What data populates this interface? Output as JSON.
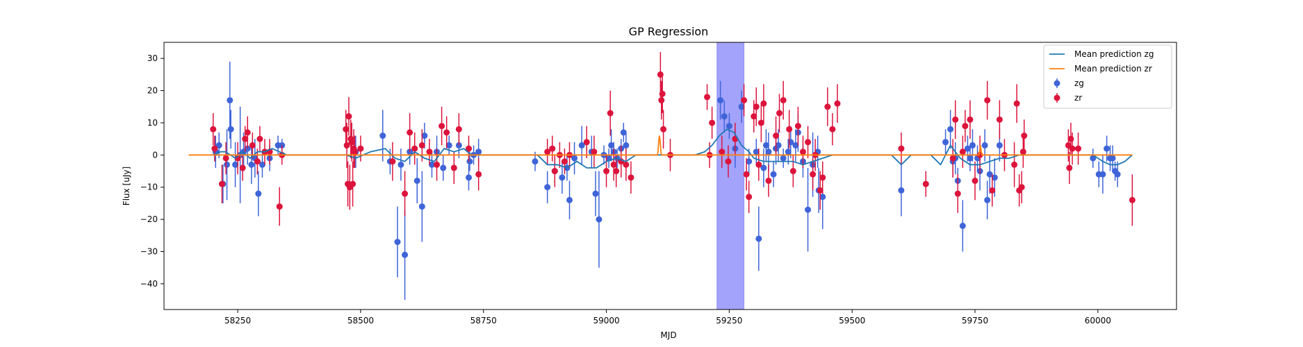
{
  "chart_data": {
    "type": "scatter",
    "title": "GP Regression",
    "xlabel": "MJD",
    "ylabel": "Flux [uJy]",
    "xlim": [
      58100,
      60160
    ],
    "ylim": [
      -48,
      35
    ],
    "x_ticks": [
      58250,
      58500,
      58750,
      59000,
      59250,
      59500,
      59750,
      60000
    ],
    "y_ticks": [
      -40,
      -30,
      -20,
      -10,
      0,
      10,
      20,
      30
    ],
    "shaded_region": {
      "x_start": 59225,
      "x_end": 59280,
      "color": "#a3a3fb"
    },
    "legend": {
      "placement": "top-right",
      "entries": [
        "Mean prediction zg",
        "Mean prediction zr",
        "zg",
        "zr"
      ]
    },
    "colors": {
      "zg_line": "#1f77b4",
      "zr_line": "#ff7f0e",
      "zg_points": "#3e64d8",
      "zr_points": "#dc143c",
      "shade": "#a3a3fb"
    },
    "series": [
      {
        "name": "Mean prediction zg",
        "kind": "line",
        "x": [
          58200,
          58215,
          58225,
          58235,
          58245,
          58260,
          58275,
          58290,
          58305,
          58320,
          58335,
          58350,
          58470,
          58490,
          58520,
          58550,
          58570,
          58590,
          58610,
          58630,
          58650,
          58670,
          58690,
          58710,
          58725,
          58740,
          58760,
          58860,
          58880,
          58900,
          58920,
          58940,
          58960,
          58980,
          59000,
          59020,
          59040,
          59060,
          59080,
          59100,
          59180,
          59200,
          59215,
          59230,
          59245,
          59260,
          59275,
          59290,
          59300,
          59320,
          59340,
          59360,
          59380,
          59400,
          59420,
          59440,
          59460,
          59480,
          59580,
          59600,
          59620,
          59660,
          59680,
          59700,
          59720,
          59740,
          59760,
          59780,
          59800,
          59820,
          59840,
          59860,
          59990,
          60010,
          60025,
          60040,
          60055,
          60070
        ],
        "y": [
          0,
          1,
          1,
          0,
          -1,
          1,
          -1,
          1,
          1,
          2,
          1,
          0,
          0,
          -1,
          1,
          2,
          -1,
          -2,
          1,
          -1,
          -2,
          2,
          1,
          2,
          0,
          0,
          0,
          0,
          -3,
          -3,
          -4,
          -2,
          -4,
          -4,
          -2,
          -1,
          -2,
          0,
          0,
          0,
          0,
          1,
          3,
          6,
          8,
          7,
          3,
          1,
          -1,
          -2,
          -2,
          -2,
          -2,
          -3,
          -2,
          -1,
          0,
          0,
          0,
          -3,
          0,
          0,
          -3,
          3,
          -1,
          -3,
          -3,
          -2,
          -1,
          -1,
          0,
          0,
          0,
          -2,
          -3,
          -3,
          -2,
          0
        ]
      },
      {
        "name": "Mean prediction zr",
        "kind": "line",
        "x": [
          58150,
          58300,
          58450,
          58600,
          58750,
          58900,
          59050,
          59104,
          59105,
          59106,
          59107,
          59108,
          59109,
          59110,
          59111,
          59112,
          59113,
          59114,
          59115,
          59116,
          59200,
          59250,
          59350,
          59500,
          59650,
          59758,
          59759,
          59760,
          59761,
          59762,
          59763,
          59764,
          59765,
          59766,
          59800,
          59950,
          60070
        ],
        "y": [
          0,
          0,
          0,
          0,
          0,
          0,
          0,
          0,
          1,
          3,
          5,
          6,
          5,
          3,
          1,
          0,
          0,
          0,
          0,
          0,
          0,
          0,
          0,
          0,
          0,
          0,
          1,
          2,
          3,
          2,
          1,
          0,
          0,
          0,
          0,
          0,
          0
        ]
      },
      {
        "name": "zg",
        "kind": "errorbar",
        "x": [
          58205,
          58212,
          58220,
          58228,
          58234,
          58236,
          58245,
          58255,
          58262,
          58270,
          58278,
          58285,
          58292,
          58300,
          58315,
          58332,
          58340,
          58490,
          58545,
          58560,
          58575,
          58582,
          58590,
          58600,
          58615,
          58625,
          58630,
          58645,
          58655,
          58668,
          58680,
          58700,
          58720,
          58722,
          58730,
          58740,
          58855,
          58880,
          58895,
          58910,
          58920,
          58925,
          58935,
          58950,
          58970,
          58978,
          58985,
          58995,
          59005,
          59010,
          59015,
          59022,
          59030,
          59035,
          59040,
          59232,
          59240,
          59250,
          59262,
          59275,
          59290,
          59305,
          59310,
          59320,
          59325,
          59330,
          59340,
          59345,
          59350,
          59360,
          59370,
          59375,
          59385,
          59390,
          59400,
          59410,
          59420,
          59430,
          59432,
          59440,
          59600,
          59690,
          59700,
          59705,
          59710,
          59715,
          59725,
          59735,
          59740,
          59745,
          59755,
          59760,
          59770,
          59775,
          59780,
          59790,
          59800,
          59990,
          60002,
          60010,
          60018,
          60025,
          60030,
          60035,
          60040
        ],
        "y": [
          1,
          3,
          -9,
          -3,
          17,
          8,
          -3,
          0,
          1,
          2,
          -3,
          -1,
          -12,
          -3,
          -1,
          3,
          3,
          1,
          6,
          -2,
          -27,
          -3,
          -31,
          1,
          -8,
          -16,
          6,
          -3,
          1,
          -4,
          3,
          3,
          -7,
          -2,
          0,
          1,
          -2,
          -10,
          -5,
          -7,
          -4,
          -14,
          -1,
          3,
          1,
          -12,
          -20,
          0,
          -1,
          3,
          1,
          -1,
          2,
          7,
          3,
          17,
          12,
          9,
          2,
          15,
          -2,
          1,
          -26,
          -4,
          3,
          1,
          -6,
          2,
          3,
          -1,
          1,
          4,
          3,
          7,
          -2,
          -17,
          -3,
          1,
          -11,
          -13,
          -11,
          4,
          8,
          -2,
          -1,
          -8,
          -22,
          2,
          -1,
          3,
          -1,
          -5,
          3,
          -14,
          -6,
          -7,
          3,
          -1,
          -6,
          -6,
          2,
          -1,
          -1,
          -5,
          -6
        ],
        "err": [
          5,
          4,
          6,
          11,
          12,
          6,
          7,
          15,
          6,
          5,
          6,
          6,
          7,
          4,
          4,
          3,
          2,
          5,
          8,
          4,
          11,
          5,
          14,
          4,
          7,
          11,
          4,
          4,
          5,
          4,
          3,
          4,
          4,
          3,
          3,
          4,
          3,
          5,
          4,
          5,
          4,
          6,
          5,
          6,
          5,
          7,
          15,
          3,
          3,
          5,
          3,
          3,
          3,
          3,
          4,
          6,
          5,
          4,
          6,
          5,
          4,
          4,
          10,
          6,
          5,
          6,
          4,
          5,
          5,
          3,
          4,
          5,
          5,
          6,
          5,
          13,
          10,
          5,
          7,
          10,
          8,
          4,
          6,
          5,
          5,
          4,
          8,
          4,
          4,
          5,
          4,
          6,
          5,
          6,
          6,
          6,
          5,
          3,
          4,
          6,
          4,
          4,
          4,
          3,
          4
        ]
      },
      {
        "name": "zr",
        "kind": "errorbar",
        "x": [
          58200,
          58203,
          58218,
          58226,
          58250,
          58260,
          58265,
          58270,
          58280,
          58290,
          58295,
          58305,
          58315,
          58335,
          58340,
          58470,
          58472,
          58474,
          58476,
          58478,
          58480,
          58482,
          58484,
          58486,
          58488,
          58500,
          58565,
          58590,
          58600,
          58610,
          58625,
          58640,
          58655,
          58665,
          58675,
          58690,
          58700,
          58720,
          58740,
          58880,
          58890,
          58895,
          58905,
          58915,
          58925,
          58960,
          58975,
          59000,
          59008,
          59015,
          59020,
          59030,
          59040,
          59050,
          59110,
          59112,
          59114,
          59116,
          59130,
          59205,
          59210,
          59215,
          59235,
          59248,
          59262,
          59280,
          59285,
          59290,
          59300,
          59305,
          59310,
          59315,
          59320,
          59330,
          59345,
          59352,
          59360,
          59372,
          59380,
          59390,
          59400,
          59410,
          59420,
          59425,
          59435,
          59440,
          59450,
          59460,
          59470,
          59600,
          59650,
          59705,
          59710,
          59715,
          59725,
          59730,
          59740,
          59750,
          59760,
          59775,
          59785,
          59800,
          59810,
          59830,
          59835,
          59840,
          59845,
          59848,
          59850,
          59940,
          59942,
          59945,
          59948,
          59960,
          60070
        ],
        "y": [
          8,
          2,
          -9,
          -1,
          -1,
          -4,
          5,
          7,
          3,
          -2,
          5,
          1,
          1,
          -16,
          0,
          8,
          3,
          -9,
          12,
          -10,
          5,
          4,
          -9,
          2,
          1,
          2,
          -2,
          -12,
          7,
          2,
          3,
          1,
          -3,
          9,
          7,
          -4,
          8,
          2,
          -6,
          1,
          2,
          -5,
          0,
          -2,
          0,
          4,
          1,
          -5,
          13,
          -3,
          -5,
          -2,
          -3,
          -7,
          25,
          17,
          19,
          8,
          0,
          18,
          0,
          10,
          1,
          -2,
          5,
          17,
          -6,
          -13,
          12,
          15,
          -3,
          10,
          16,
          -8,
          6,
          13,
          17,
          8,
          -5,
          9,
          1,
          4,
          -6,
          0,
          -11,
          -7,
          15,
          8,
          16,
          2,
          -9,
          -1,
          11,
          -12,
          1,
          9,
          11,
          -8,
          0,
          17,
          -11,
          11,
          0,
          -3,
          16,
          -11,
          -10,
          1,
          6,
          3,
          -4,
          5,
          2,
          2,
          -14
        ],
        "err": [
          5,
          4,
          6,
          5,
          5,
          4,
          4,
          5,
          4,
          4,
          4,
          4,
          4,
          6,
          3,
          6,
          7,
          7,
          6,
          7,
          6,
          6,
          7,
          6,
          5,
          4,
          6,
          7,
          6,
          5,
          5,
          4,
          5,
          6,
          5,
          5,
          5,
          4,
          5,
          4,
          4,
          5,
          4,
          4,
          4,
          5,
          5,
          5,
          7,
          5,
          5,
          5,
          5,
          5,
          7,
          6,
          6,
          6,
          5,
          4,
          4,
          5,
          5,
          5,
          5,
          5,
          5,
          5,
          5,
          6,
          5,
          6,
          6,
          5,
          6,
          6,
          6,
          6,
          5,
          6,
          5,
          5,
          5,
          5,
          6,
          5,
          6,
          5,
          6,
          5,
          4,
          6,
          6,
          6,
          5,
          5,
          6,
          6,
          6,
          6,
          5,
          6,
          5,
          7,
          6,
          5,
          5,
          5,
          5,
          5,
          5,
          5,
          5,
          5,
          8
        ]
      }
    ]
  }
}
